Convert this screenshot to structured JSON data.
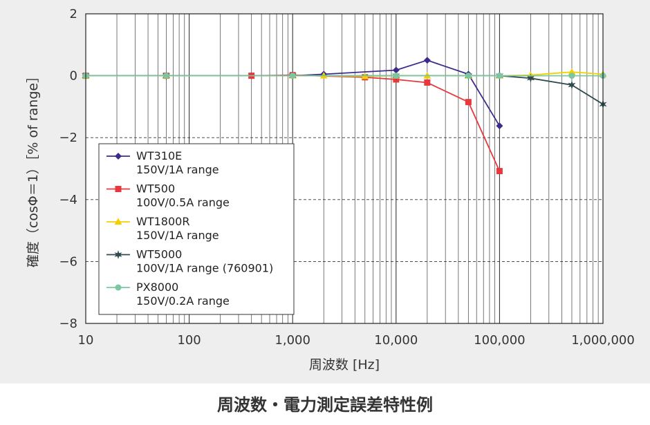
{
  "caption": "周波数・電力測定誤差特性例",
  "chart_data": {
    "type": "line",
    "title": "",
    "xlabel": "周波数 [Hz]",
    "ylabel": "確度（cosΦ＝1）［% of range］",
    "xscale": "log",
    "xlim": [
      10,
      1000000
    ],
    "ylim": [
      -8,
      2
    ],
    "x_ticks": [
      "10",
      "100",
      "1,000",
      "10,000",
      "100,000",
      "1,000,000"
    ],
    "y_ticks": [
      "2",
      "0",
      "−2",
      "−4",
      "−6",
      "−8"
    ],
    "grid": "vertical lines at every decade subdivision; dashed horizontal lines at −2, −4, −6",
    "legend_position": "lower-left inside plot",
    "series": [
      {
        "name": "WT310E",
        "range": "150V/1A range",
        "color": "#3d2a8c",
        "marker": "diamond",
        "points": [
          [
            10,
            0
          ],
          [
            60,
            0
          ],
          [
            400,
            0
          ],
          [
            1000,
            0
          ],
          [
            2000,
            0.05
          ],
          [
            10000,
            0.18
          ],
          [
            20000,
            0.5
          ],
          [
            50000,
            0.05
          ],
          [
            100000,
            -1.62
          ]
        ]
      },
      {
        "name": "WT500",
        "range": "100V/0.5A range",
        "color": "#e8383d",
        "marker": "square",
        "points": [
          [
            10,
            0
          ],
          [
            60,
            0
          ],
          [
            400,
            0
          ],
          [
            1000,
            0.02
          ],
          [
            5000,
            -0.05
          ],
          [
            10000,
            -0.12
          ],
          [
            20000,
            -0.22
          ],
          [
            50000,
            -0.85
          ],
          [
            100000,
            -3.08
          ]
        ]
      },
      {
        "name": "WT1800R",
        "range": "150V/1A range",
        "color": "#f5d000",
        "marker": "triangle",
        "points": [
          [
            10,
            0
          ],
          [
            60,
            0
          ],
          [
            1000,
            0
          ],
          [
            2000,
            0
          ],
          [
            5000,
            -0.02
          ],
          [
            10000,
            0
          ],
          [
            20000,
            0
          ],
          [
            50000,
            0
          ],
          [
            100000,
            0
          ],
          [
            200000,
            0.02
          ],
          [
            500000,
            0.12
          ],
          [
            1000000,
            0.05
          ]
        ]
      },
      {
        "name": "WT5000",
        "range": "100V/1A range (760901)",
        "color": "#2e4a4f",
        "marker": "star",
        "points": [
          [
            10,
            0
          ],
          [
            60,
            0
          ],
          [
            1000,
            0
          ],
          [
            10000,
            0
          ],
          [
            50000,
            0
          ],
          [
            100000,
            0
          ],
          [
            200000,
            -0.08
          ],
          [
            500000,
            -0.3
          ],
          [
            1000000,
            -0.92
          ]
        ]
      },
      {
        "name": "PX8000",
        "range": "150V/0.2A range",
        "color": "#7cc7a0",
        "marker": "circle",
        "points": [
          [
            10,
            0
          ],
          [
            60,
            0
          ],
          [
            1000,
            0
          ],
          [
            10000,
            0
          ],
          [
            50000,
            0
          ],
          [
            100000,
            0
          ],
          [
            500000,
            0
          ],
          [
            1000000,
            0
          ]
        ]
      }
    ]
  }
}
